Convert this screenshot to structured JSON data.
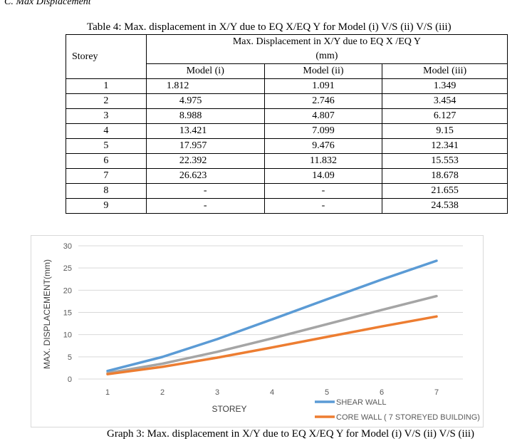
{
  "section_heading": "C.   Max Displacement",
  "table": {
    "caption": "Table 4: Max. displacement in X/Y due to EQ X/EQ Y for Model (i) V/S (ii) V/S (iii)",
    "storey_header": "Storey",
    "group_header_line1": "Max. Displacement in X/Y due to EQ X /EQ Y",
    "group_header_line2": "(mm)",
    "model_headers": [
      "Model (i)",
      "Model (ii)",
      "Model (iii)"
    ],
    "rows": [
      {
        "storey": "1",
        "m1": "1.812",
        "m2": "1.091",
        "m3": "1.349"
      },
      {
        "storey": "2",
        "m1": "4.975",
        "m2": "2.746",
        "m3": "3.454"
      },
      {
        "storey": "3",
        "m1": "8.988",
        "m2": "4.807",
        "m3": "6.127"
      },
      {
        "storey": "4",
        "m1": "13.421",
        "m2": "7.099",
        "m3": "9.15"
      },
      {
        "storey": "5",
        "m1": "17.957",
        "m2": "9.476",
        "m3": "12.341"
      },
      {
        "storey": "6",
        "m1": "22.392",
        "m2": "11.832",
        "m3": "15.553"
      },
      {
        "storey": "7",
        "m1": "26.623",
        "m2": "14.09",
        "m3": "18.678"
      },
      {
        "storey": "8",
        "m1": "-",
        "m2": "-",
        "m3": "21.655"
      },
      {
        "storey": "9",
        "m1": "-",
        "m2": "-",
        "m3": "24.538"
      }
    ]
  },
  "chart_caption": "Graph 3: Max. displacement in X/Y due to EQ X/EQ Y for Model (i) V/S (ii) V/S (iii)",
  "chart_data": {
    "type": "line",
    "title": "",
    "xlabel": "STOREY",
    "ylabel": "MAX. DISPLACEMENT(mm)",
    "x": [
      1,
      2,
      3,
      4,
      5,
      6,
      7
    ],
    "ylim": [
      0,
      30
    ],
    "yticks": [
      0,
      5,
      10,
      15,
      20,
      25,
      30
    ],
    "grid": true,
    "legend_position": "bottom-right",
    "series": [
      {
        "name": "SHEAR WALL",
        "color": "#5b9bd5",
        "values": [
          1.812,
          4.975,
          8.988,
          13.421,
          17.957,
          22.392,
          26.623
        ]
      },
      {
        "name": "",
        "color": "#a5a5a5",
        "values": [
          1.349,
          3.454,
          6.127,
          9.15,
          12.341,
          15.553,
          18.678
        ]
      },
      {
        "name": "CORE WALL ( 7 STOREYED BUILDING)",
        "color": "#ed7d31",
        "values": [
          1.091,
          2.746,
          4.807,
          7.099,
          9.476,
          11.832,
          14.09
        ]
      }
    ]
  }
}
